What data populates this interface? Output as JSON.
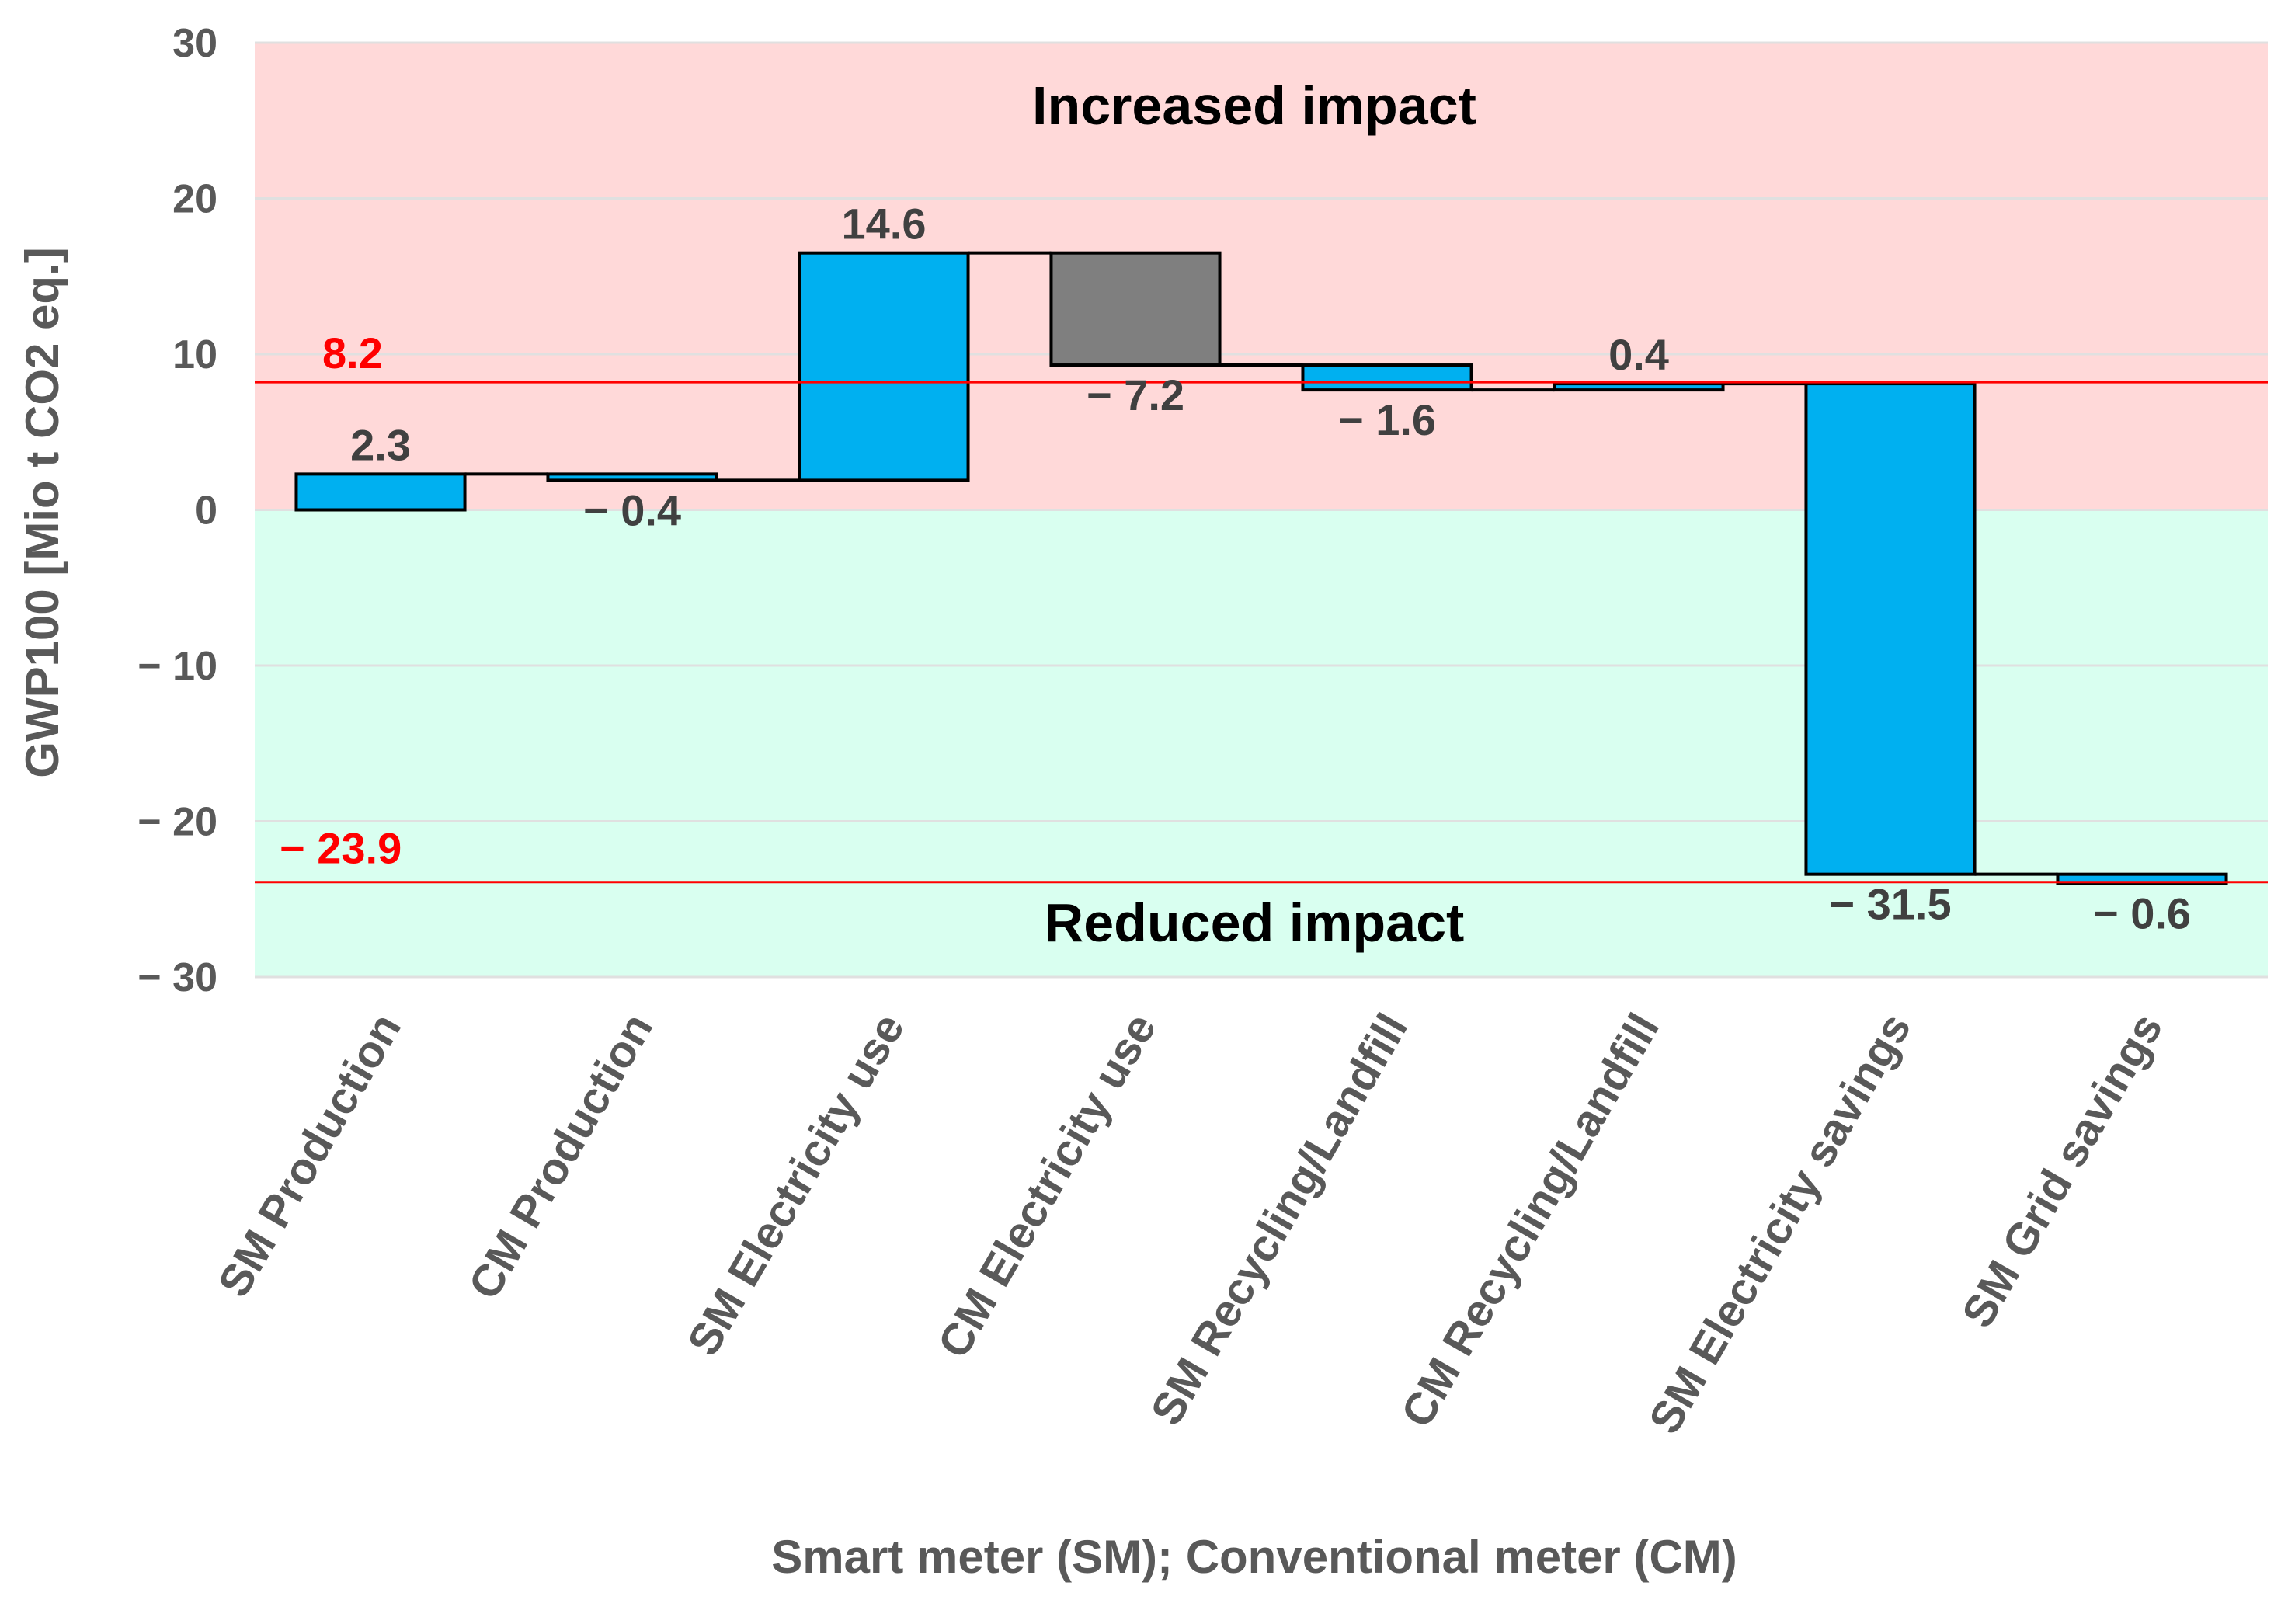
{
  "chart_data": {
    "type": "waterfall",
    "ylabel": "GWP100 [Mio t CO2 eq.]",
    "xlabel": "Smart meter (SM); Conventional meter (CM)",
    "ylim": [
      -30,
      30
    ],
    "yticks": [
      30,
      20,
      10,
      0,
      -10,
      -20,
      -30
    ],
    "ytick_labels": [
      "30",
      "20",
      "10",
      "0",
      "− 10",
      "− 20",
      "− 30"
    ],
    "categories": [
      "SM Production",
      "CM Production",
      "SM Electricity use",
      "CM Electricity use",
      "SM Recycling/Landfill",
      "CM Recycling/Landfill",
      "SM Electricity savings",
      "SM Grid savings"
    ],
    "values": [
      2.3,
      -0.4,
      14.6,
      -7.2,
      -1.6,
      0.4,
      -31.5,
      -0.6
    ],
    "value_labels": [
      "2.3",
      "− 0.4",
      "14.6",
      "− 7.2",
      "− 1.6",
      "0.4",
      "− 31.5",
      "− 0.6"
    ],
    "bar_colors": [
      "#00b0f0",
      "#00b0f0",
      "#00b0f0",
      "#7f7f7f",
      "#00b0f0",
      "#00b0f0",
      "#00b0f0",
      "#00b0f0"
    ],
    "reference_lines": [
      {
        "value": 8.2,
        "label": "8.2",
        "color": "#ff0000"
      },
      {
        "value": -23.9,
        "label": "− 23.9",
        "color": "#ff0000"
      }
    ],
    "regions": [
      {
        "label": "Increased impact",
        "from": 0,
        "to": 30,
        "color": "#ffd9d9"
      },
      {
        "label": "Reduced impact",
        "from": -30,
        "to": 0,
        "color": "#d9fff0"
      }
    ],
    "grid": true
  }
}
